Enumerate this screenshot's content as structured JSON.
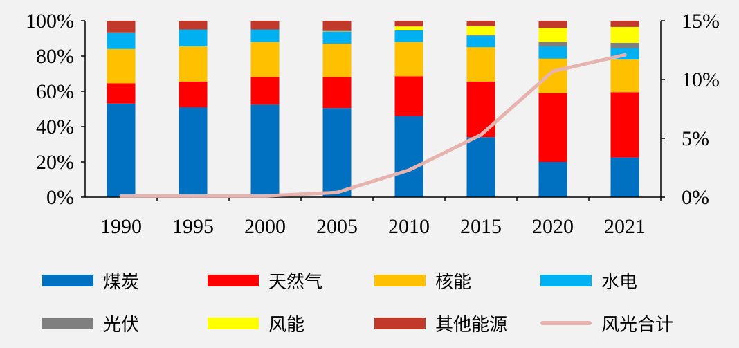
{
  "chart_data": {
    "type": "bar",
    "stacked": true,
    "categories": [
      "1990",
      "1995",
      "2000",
      "2005",
      "2010",
      "2015",
      "2020",
      "2021"
    ],
    "y_left": {
      "ticks": [
        "0%",
        "20%",
        "40%",
        "60%",
        "80%",
        "100%"
      ],
      "ylim": [
        0,
        100
      ]
    },
    "y_right": {
      "ticks": [
        "0%",
        "5%",
        "10%",
        "15%"
      ],
      "ylim": [
        0,
        15
      ]
    },
    "series": [
      {
        "name": "煤炭",
        "color": "#0070C0",
        "values": [
          53,
          51,
          52.5,
          50.5,
          46,
          34,
          20,
          22.5
        ]
      },
      {
        "name": "天然气",
        "color": "#FF0000",
        "values": [
          11.5,
          14.5,
          15.5,
          17.5,
          22.5,
          31.5,
          39,
          37
        ]
      },
      {
        "name": "核能",
        "color": "#FFC000",
        "values": [
          19.5,
          20,
          20,
          19,
          19.5,
          19.5,
          19.5,
          18.5
        ]
      },
      {
        "name": "水电",
        "color": "#00B0F0",
        "values": [
          9,
          9.5,
          7,
          7,
          6.5,
          6.5,
          7,
          6.5
        ]
      },
      {
        "name": "光伏",
        "color": "#7F7F7F",
        "values": [
          0.5,
          0,
          0,
          0,
          0.1,
          0.5,
          2.5,
          3
        ]
      },
      {
        "name": "风能",
        "color": "#FFFF00",
        "values": [
          0,
          0,
          0,
          0.2,
          2.2,
          5,
          8,
          9
        ]
      },
      {
        "name": "其他能源",
        "color": "#C0392B",
        "values": [
          6.5,
          5,
          5,
          5.8,
          3.2,
          3,
          4,
          3.5
        ]
      }
    ],
    "line_series": {
      "name": "风光合计",
      "color": "#E6B3AE",
      "axis": "right",
      "values": [
        0.1,
        0.1,
        0.1,
        0.4,
        2.3,
        5.3,
        10.7,
        12.1
      ]
    }
  },
  "legend": {
    "items": [
      "煤炭",
      "天然气",
      "核能",
      "水电",
      "光伏",
      "风能",
      "其他能源",
      "风光合计"
    ]
  }
}
